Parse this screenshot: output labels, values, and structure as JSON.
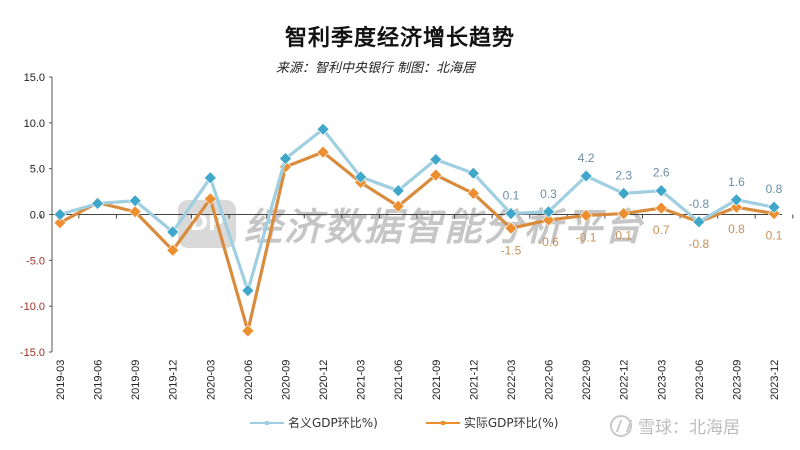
{
  "header": {
    "title": "智利季度经济增长趋势",
    "subtitle": "来源：智利中央银行 制图：北海居"
  },
  "legend": {
    "nominal_label": "名义GDP环比%)",
    "real_label": "实际GDP环比(%)"
  },
  "watermarks": {
    "center_logo": "DP",
    "center_text": "经济数据智能分析平台",
    "brand_text": "雪球：北海居"
  },
  "colors": {
    "nominal": "#3fa7c9",
    "nominal_line": "#9fcfe0",
    "real": "#ee8f2f",
    "real_line": "#d98c3e",
    "nominal_label": "#6b8fa3",
    "real_label": "#c8915a",
    "negative_tick": "#a0342a"
  },
  "chart_data": {
    "type": "line",
    "title": "智利季度经济增长趋势",
    "subtitle": "来源：智利中央银行 制图：北海居",
    "xlabel": "",
    "ylabel": "",
    "ylim": [
      -15,
      15
    ],
    "yticks": [
      "15.0",
      "10.0",
      "5.0",
      "0.0",
      "-5.0",
      "-10.0",
      "-15.0"
    ],
    "grid": false,
    "legend_position": "bottom",
    "categories": [
      "2019-03",
      "2019-06",
      "2019-09",
      "2019-12",
      "2020-03",
      "2020-06",
      "2020-09",
      "2020-12",
      "2021-03",
      "2021-06",
      "2021-09",
      "2021-12",
      "2022-03",
      "2022-06",
      "2022-09",
      "2022-12",
      "2023-03",
      "2023-06",
      "2023-09",
      "2023-12"
    ],
    "series": [
      {
        "name": "名义GDP环比%)",
        "values": [
          0.0,
          1.2,
          1.5,
          -1.9,
          4.0,
          -8.3,
          6.1,
          9.3,
          4.1,
          2.6,
          6.0,
          4.5,
          0.1,
          0.3,
          4.2,
          2.3,
          2.6,
          -0.8,
          1.6,
          0.8
        ],
        "labels": {
          "12": "0.1",
          "13": "0.3",
          "14": "4.2",
          "15": "2.3",
          "16": "2.6",
          "17": "-0.8",
          "18": "1.6",
          "19": "0.8"
        }
      },
      {
        "name": "实际GDP环比(%)",
        "values": [
          -0.9,
          1.3,
          0.3,
          -3.9,
          1.7,
          -12.7,
          5.2,
          6.8,
          3.5,
          0.9,
          4.3,
          2.3,
          -1.5,
          -0.6,
          -0.1,
          0.1,
          0.7,
          -0.8,
          0.8,
          0.1
        ],
        "labels": {
          "12": "-1.5",
          "13": "-0.6",
          "14": "-0.1",
          "15": "0.1",
          "16": "0.7",
          "17": "-0.8",
          "18": "0.8",
          "19": "0.1"
        }
      }
    ]
  }
}
